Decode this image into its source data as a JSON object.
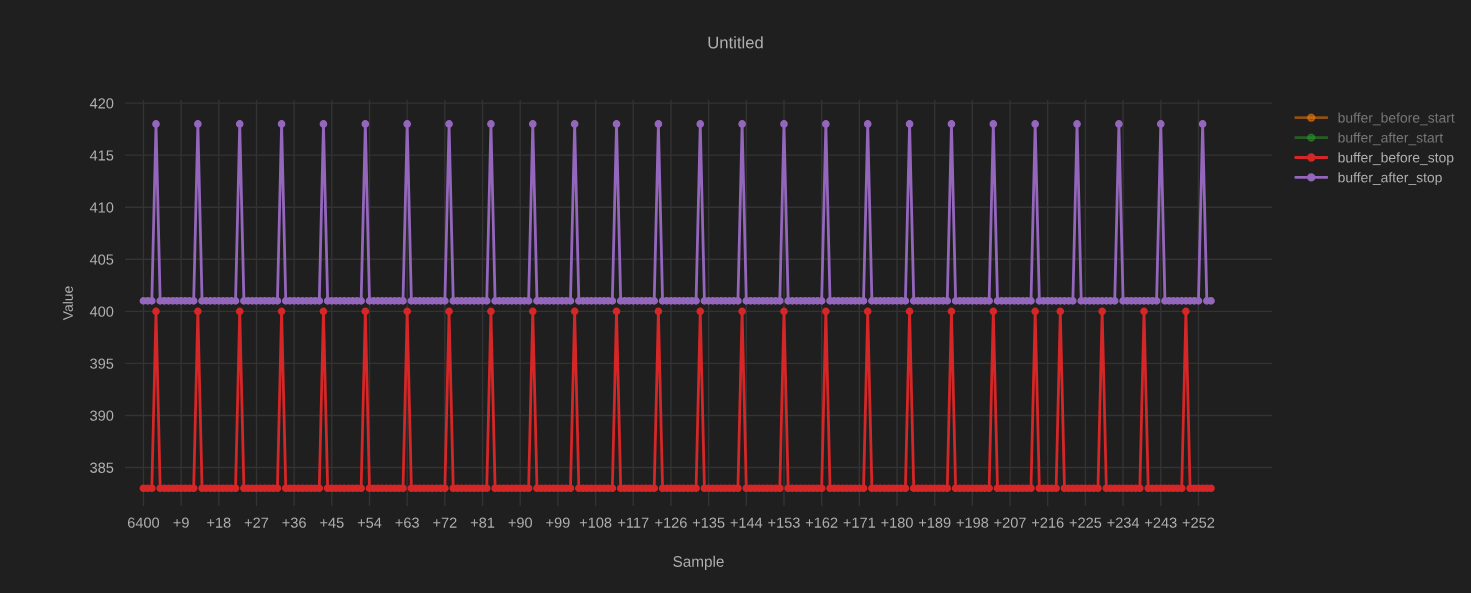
{
  "chart_data": {
    "type": "line",
    "title": "Untitled",
    "xlabel": "Sample",
    "ylabel": "Value",
    "categories": [
      "6400",
      null,
      null,
      null,
      null,
      null,
      null,
      null,
      null,
      "+9",
      null,
      null,
      null,
      null,
      null,
      null,
      null,
      null,
      "+18",
      null,
      null,
      null,
      null,
      null,
      null,
      null,
      null,
      "+27",
      null,
      null,
      null,
      null,
      null,
      null,
      null,
      null,
      "+36",
      null,
      null,
      null,
      null,
      null,
      null,
      null,
      null,
      "+45",
      null,
      null,
      null,
      null,
      null,
      null,
      null,
      null,
      "+54",
      null,
      null,
      null,
      null,
      null,
      null,
      null,
      null,
      "+63",
      null,
      null,
      null,
      null,
      null,
      null,
      null,
      null,
      "+72",
      null,
      null,
      null,
      null,
      null,
      null,
      null,
      null,
      "+81",
      null,
      null,
      null,
      null,
      null,
      null,
      null,
      null,
      "+90",
      null,
      null,
      null,
      null,
      null,
      null,
      null,
      null,
      "+99",
      null,
      null,
      null,
      null,
      null,
      null,
      null,
      null,
      "+108",
      null,
      null,
      null,
      null,
      null,
      null,
      null,
      null,
      "+117",
      null,
      null,
      null,
      null,
      null,
      null,
      null,
      null,
      "+126",
      null,
      null,
      null,
      null,
      null,
      null,
      null,
      null,
      "+135",
      null,
      null,
      null,
      null,
      null,
      null,
      null,
      null,
      "+144",
      null,
      null,
      null,
      null,
      null,
      null,
      null,
      null,
      "+153",
      null,
      null,
      null,
      null,
      null,
      null,
      null,
      null,
      "+162",
      null,
      null,
      null,
      null,
      null,
      null,
      null,
      null,
      "+171",
      null,
      null,
      null,
      null,
      null,
      null,
      null,
      null,
      "+180",
      null,
      null,
      null,
      null,
      null,
      null,
      null,
      null,
      "+189",
      null,
      null,
      null,
      null,
      null,
      null,
      null,
      null,
      "+198",
      null,
      null,
      null,
      null,
      null,
      null,
      null,
      null,
      "+207",
      null,
      null,
      null,
      null,
      null,
      null,
      null,
      null,
      "+216",
      null,
      null,
      null,
      null,
      null,
      null,
      null,
      null,
      "+225",
      null,
      null,
      null,
      null,
      null,
      null,
      null,
      null,
      "+234",
      null,
      null,
      null,
      null,
      null,
      null,
      null,
      null,
      "+243",
      null,
      null,
      null,
      null,
      null,
      null,
      null,
      null,
      "+252",
      null,
      null,
      null
    ],
    "series": [
      {
        "name": "buffer_before_start",
        "color": "#ff7f0e",
        "values": [
          null,
          null,
          null,
          null,
          null,
          null,
          null,
          null,
          null,
          null,
          null,
          null,
          null,
          null,
          null,
          null,
          null,
          null,
          null,
          null,
          null,
          null,
          null,
          null,
          null,
          null,
          null,
          null,
          null,
          null,
          null,
          null,
          null,
          null,
          null,
          null,
          null,
          null,
          null,
          null,
          null,
          null,
          null,
          null,
          null,
          null,
          null,
          null,
          null,
          null,
          null,
          null,
          null,
          null,
          null,
          null,
          null,
          null,
          null,
          null,
          null,
          null,
          null,
          null,
          null,
          null,
          null,
          null,
          null,
          null,
          null,
          null,
          null,
          null,
          null,
          null,
          null,
          null,
          null,
          null,
          null,
          null,
          null,
          null,
          null,
          null,
          null,
          null,
          null,
          null,
          null,
          null,
          null,
          null,
          null,
          null,
          null,
          null,
          null,
          null,
          null,
          null,
          null,
          null,
          null,
          null,
          null,
          null,
          null,
          null,
          null,
          null,
          null,
          null,
          null,
          null,
          null,
          null,
          null,
          null,
          null,
          null,
          null,
          null,
          null,
          null,
          null,
          null,
          null,
          null,
          null,
          null,
          null,
          null,
          null,
          null,
          null,
          null,
          null,
          null,
          null,
          null,
          null,
          null,
          null,
          null,
          null,
          null,
          null,
          null,
          null,
          null,
          null,
          null,
          null,
          null,
          null,
          null,
          null,
          null,
          null,
          null,
          null,
          null,
          null,
          null,
          null,
          null,
          null,
          null,
          null,
          null,
          null,
          null,
          null,
          null,
          null,
          null,
          null,
          null,
          null,
          null,
          null,
          null,
          null,
          null,
          null,
          null,
          null,
          null,
          null,
          null,
          null,
          null,
          null,
          null,
          null,
          null,
          null,
          null,
          null,
          null,
          null,
          null,
          null,
          null,
          null,
          null,
          null,
          null,
          null,
          null,
          null,
          null,
          null,
          null,
          null,
          null,
          null,
          null,
          null,
          null,
          null,
          null,
          null,
          null,
          null,
          null,
          null,
          null,
          null,
          null,
          null,
          null,
          null,
          null,
          null,
          null,
          null,
          null,
          null,
          null,
          null,
          null,
          null,
          null,
          null,
          null,
          null,
          null,
          null,
          null,
          null,
          null,
          null,
          null
        ]
      },
      {
        "name": "buffer_after_start",
        "color": "#2ca02c",
        "values": [
          null,
          null,
          null,
          null,
          null,
          null,
          null,
          null,
          null,
          null,
          null,
          null,
          null,
          null,
          null,
          null,
          null,
          null,
          null,
          null,
          null,
          null,
          null,
          null,
          null,
          null,
          null,
          null,
          null,
          null,
          null,
          null,
          null,
          null,
          null,
          null,
          null,
          null,
          null,
          null,
          null,
          null,
          null,
          null,
          null,
          null,
          null,
          null,
          null,
          null,
          null,
          null,
          null,
          null,
          null,
          null,
          null,
          null,
          null,
          null,
          null,
          null,
          null,
          null,
          null,
          null,
          null,
          null,
          null,
          null,
          null,
          null,
          null,
          null,
          null,
          null,
          null,
          null,
          null,
          null,
          null,
          null,
          null,
          null,
          null,
          null,
          null,
          null,
          null,
          null,
          null,
          null,
          null,
          null,
          null,
          null,
          null,
          null,
          null,
          null,
          null,
          null,
          null,
          null,
          null,
          null,
          null,
          null,
          null,
          null,
          null,
          null,
          null,
          null,
          null,
          null,
          null,
          null,
          null,
          null,
          null,
          null,
          null,
          null,
          null,
          null,
          null,
          null,
          null,
          null,
          null,
          null,
          null,
          null,
          null,
          null,
          null,
          null,
          null,
          null,
          null,
          null,
          null,
          null,
          null,
          null,
          null,
          null,
          null,
          null,
          null,
          null,
          null,
          null,
          null,
          null,
          null,
          null,
          null,
          null,
          null,
          null,
          null,
          null,
          null,
          null,
          null,
          null,
          null,
          null,
          null,
          null,
          null,
          null,
          null,
          null,
          null,
          null,
          null,
          null,
          null,
          null,
          null,
          null,
          null,
          null,
          null,
          null,
          null,
          null,
          null,
          null,
          null,
          null,
          null,
          null,
          null,
          null,
          null,
          null,
          null,
          null,
          null,
          null,
          null,
          null,
          null,
          null,
          null,
          null,
          null,
          null,
          null,
          null,
          null,
          null,
          null,
          null,
          null,
          null,
          null,
          null,
          null,
          null,
          null,
          null,
          null,
          null,
          null,
          null,
          null,
          null,
          null,
          null,
          null,
          null,
          null,
          null,
          null,
          null,
          null,
          null,
          null,
          null,
          null,
          null,
          null,
          null,
          null,
          null,
          null,
          null,
          null,
          null,
          null,
          null
        ]
      },
      {
        "name": "buffer_before_stop",
        "color": "#d62728",
        "values": [
          383,
          383,
          383,
          400,
          383,
          383,
          383,
          383,
          383,
          383,
          383,
          383,
          383,
          400,
          383,
          383,
          383,
          383,
          383,
          383,
          383,
          383,
          383,
          400,
          383,
          383,
          383,
          383,
          383,
          383,
          383,
          383,
          383,
          400,
          383,
          383,
          383,
          383,
          383,
          383,
          383,
          383,
          383,
          400,
          383,
          383,
          383,
          383,
          383,
          383,
          383,
          383,
          383,
          400,
          383,
          383,
          383,
          383,
          383,
          383,
          383,
          383,
          383,
          400,
          383,
          383,
          383,
          383,
          383,
          383,
          383,
          383,
          383,
          400,
          383,
          383,
          383,
          383,
          383,
          383,
          383,
          383,
          383,
          400,
          383,
          383,
          383,
          383,
          383,
          383,
          383,
          383,
          383,
          400,
          383,
          383,
          383,
          383,
          383,
          383,
          383,
          383,
          383,
          400,
          383,
          383,
          383,
          383,
          383,
          383,
          383,
          383,
          383,
          400,
          383,
          383,
          383,
          383,
          383,
          383,
          383,
          383,
          383,
          400,
          383,
          383,
          383,
          383,
          383,
          383,
          383,
          383,
          383,
          400,
          383,
          383,
          383,
          383,
          383,
          383,
          383,
          383,
          383,
          400,
          383,
          383,
          383,
          383,
          383,
          383,
          383,
          383,
          383,
          400,
          383,
          383,
          383,
          383,
          383,
          383,
          383,
          383,
          383,
          400,
          383,
          383,
          383,
          383,
          383,
          383,
          383,
          383,
          383,
          400,
          383,
          383,
          383,
          383,
          383,
          383,
          383,
          383,
          383,
          400,
          383,
          383,
          383,
          383,
          383,
          383,
          383,
          383,
          383,
          400,
          383,
          383,
          383,
          383,
          383,
          383,
          383,
          383,
          383,
          400,
          383,
          383,
          383,
          383,
          383,
          383,
          383,
          383,
          383,
          400,
          383,
          383,
          383,
          383,
          383,
          400,
          383,
          383,
          383,
          383,
          383,
          383,
          383,
          383,
          383,
          400,
          383,
          383,
          383,
          383,
          383,
          383,
          383,
          383,
          383,
          400,
          383,
          383,
          383,
          383,
          383,
          383,
          383,
          383,
          383,
          400,
          383,
          383,
          383,
          383,
          383,
          383
        ]
      },
      {
        "name": "buffer_after_stop",
        "color": "#9467bd",
        "values": [
          401,
          401,
          401,
          418,
          401,
          401,
          401,
          401,
          401,
          401,
          401,
          401,
          401,
          418,
          401,
          401,
          401,
          401,
          401,
          401,
          401,
          401,
          401,
          418,
          401,
          401,
          401,
          401,
          401,
          401,
          401,
          401,
          401,
          418,
          401,
          401,
          401,
          401,
          401,
          401,
          401,
          401,
          401,
          418,
          401,
          401,
          401,
          401,
          401,
          401,
          401,
          401,
          401,
          418,
          401,
          401,
          401,
          401,
          401,
          401,
          401,
          401,
          401,
          418,
          401,
          401,
          401,
          401,
          401,
          401,
          401,
          401,
          401,
          418,
          401,
          401,
          401,
          401,
          401,
          401,
          401,
          401,
          401,
          418,
          401,
          401,
          401,
          401,
          401,
          401,
          401,
          401,
          401,
          418,
          401,
          401,
          401,
          401,
          401,
          401,
          401,
          401,
          401,
          418,
          401,
          401,
          401,
          401,
          401,
          401,
          401,
          401,
          401,
          418,
          401,
          401,
          401,
          401,
          401,
          401,
          401,
          401,
          401,
          418,
          401,
          401,
          401,
          401,
          401,
          401,
          401,
          401,
          401,
          418,
          401,
          401,
          401,
          401,
          401,
          401,
          401,
          401,
          401,
          418,
          401,
          401,
          401,
          401,
          401,
          401,
          401,
          401,
          401,
          418,
          401,
          401,
          401,
          401,
          401,
          401,
          401,
          401,
          401,
          418,
          401,
          401,
          401,
          401,
          401,
          401,
          401,
          401,
          401,
          418,
          401,
          401,
          401,
          401,
          401,
          401,
          401,
          401,
          401,
          418,
          401,
          401,
          401,
          401,
          401,
          401,
          401,
          401,
          401,
          418,
          401,
          401,
          401,
          401,
          401,
          401,
          401,
          401,
          401,
          418,
          401,
          401,
          401,
          401,
          401,
          401,
          401,
          401,
          401,
          418,
          401,
          401,
          401,
          401,
          401,
          401,
          401,
          401,
          401,
          418,
          401,
          401,
          401,
          401,
          401,
          401,
          401,
          401,
          401,
          418,
          401,
          401,
          401,
          401,
          401,
          401,
          401,
          401,
          401,
          418,
          401,
          401,
          401,
          401,
          401,
          401,
          401,
          401,
          401,
          418,
          401,
          401
        ]
      }
    ],
    "ylim": [
      381.3,
      420.3
    ],
    "yticks": [
      385,
      390,
      395,
      400,
      405,
      410,
      415,
      420
    ],
    "grid": true,
    "legend": "top right",
    "marker": "circle",
    "line_style": "solid"
  }
}
